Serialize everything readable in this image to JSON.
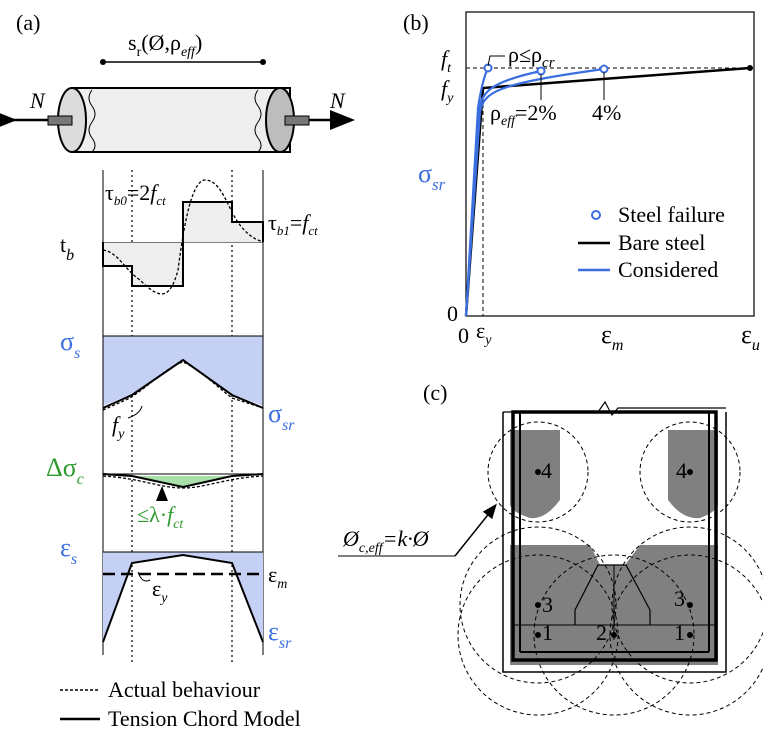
{
  "panel_a": {
    "label": "(a)",
    "spacing_label": "s_r(Ø,ρ_eff)",
    "spacing": {
      "s": "s",
      "sub": "r",
      "args": "(Ø,ρ",
      "eff": "eff",
      "close": ")"
    },
    "force_left": "N",
    "force_right": "N",
    "tau_b0": {
      "pre": "τ",
      "sub": "b0",
      "eq": "=2",
      "f": "f",
      "fsub": "ct"
    },
    "tau_b1": {
      "pre": "τ",
      "sub": "b1",
      "eq": "=",
      "f": "f",
      "fsub": "ct"
    },
    "tb": {
      "main": "t",
      "sub": "b"
    },
    "sigma_s": {
      "main": "σ",
      "sub": "s"
    },
    "sigma_sr": {
      "main": "σ",
      "sub": "sr"
    },
    "fy": {
      "main": "f",
      "sub": "y"
    },
    "delta_sigma_c": {
      "main": "Δσ",
      "sub": "c"
    },
    "lambda_fct": {
      "pre": "≤λ·",
      "f": "f",
      "sub": "ct"
    },
    "eps_s": {
      "main": "ε",
      "sub": "s"
    },
    "eps_y": {
      "main": "ε",
      "sub": "y"
    },
    "eps_m": {
      "main": "ε",
      "sub": "m"
    },
    "eps_sr": {
      "main": "ε",
      "sub": "sr"
    },
    "legend": {
      "actual": "Actual behaviour",
      "tcm": "Tension Chord Model"
    }
  },
  "panel_b": {
    "label": "(b)",
    "ft": {
      "main": "f",
      "sub": "t"
    },
    "fy": {
      "main": "f",
      "sub": "y"
    },
    "rho_cr": {
      "pre": "ρ≤ρ",
      "sub": "cr"
    },
    "rho_eff": {
      "pre": "ρ",
      "sub": "eff",
      "post": "=2%"
    },
    "pct4": "4%",
    "sigma_sr": {
      "main": "σ",
      "sub": "sr"
    },
    "zero_y": "0",
    "zero_x": "0",
    "eps_y": {
      "main": "ε",
      "sub": "y"
    },
    "eps_m": {
      "main": "ε",
      "sub": "m"
    },
    "eps_u": {
      "main": "ε",
      "sub": "u"
    },
    "legend": {
      "steel_failure": "Steel failure",
      "bare_steel": "Bare steel",
      "considered": "Considered"
    },
    "colors": {
      "considered": "#3b6fe0",
      "bare": "#000000"
    }
  },
  "panel_c": {
    "label": "(c)",
    "phi_label": {
      "pre": "Ø",
      "sub": "c,eff",
      "post": "=k·Ø"
    },
    "bar_labels": {
      "b4l": "4",
      "b4r": "4",
      "b3l": "3",
      "b3r": "3",
      "b1l": "1",
      "b1r": "1",
      "b2": "2"
    }
  }
}
